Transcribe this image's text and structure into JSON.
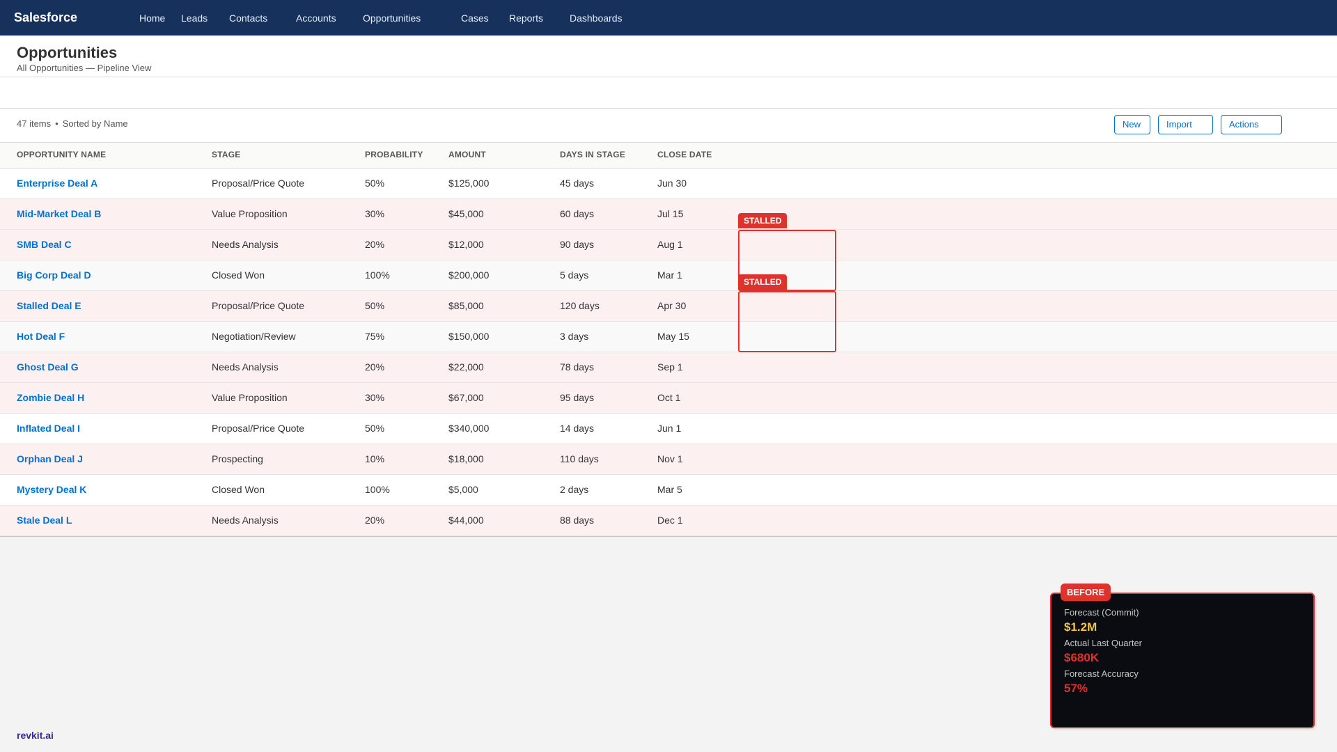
{
  "app": {
    "brand": "Salesforce"
  },
  "nav": {
    "items": [
      {
        "label": "Home"
      },
      {
        "label": "Leads"
      },
      {
        "label": "Contacts"
      },
      {
        "label": "Accounts"
      },
      {
        "label": "Opportunities"
      },
      {
        "label": "Cases"
      },
      {
        "label": "Reports"
      },
      {
        "label": "Dashboards"
      }
    ]
  },
  "header": {
    "title": "Opportunities",
    "subtitle": "All Opportunities — Pipeline View"
  },
  "listbar": {
    "count": "47 items",
    "separator": "•",
    "sort": "Sorted by Name",
    "buttons": {
      "new": "New",
      "import": "Import",
      "actions": "Actions"
    }
  },
  "table": {
    "columns": [
      "OPPORTUNITY NAME",
      "STAGE",
      "PROBABILITY",
      "AMOUNT",
      "DAYS IN STAGE",
      "CLOSE DATE"
    ],
    "rows": [
      {
        "name": "Enterprise Deal A",
        "stage": "Proposal/Price Quote",
        "probability": "50%",
        "amount": "$125,000",
        "days": "45 days",
        "close": "Jun 30"
      },
      {
        "name": "Mid-Market Deal B",
        "stage": "Value Proposition",
        "probability": "30%",
        "amount": "$45,000",
        "days": "60 days",
        "close": "Jul 15"
      },
      {
        "name": "SMB Deal C",
        "stage": "Needs Analysis",
        "probability": "20%",
        "amount": "$12,000",
        "days": "90 days",
        "close": "Aug 1"
      },
      {
        "name": "Big Corp Deal D",
        "stage": "Closed Won",
        "probability": "100%",
        "amount": "$200,000",
        "days": "5 days",
        "close": "Mar 1"
      },
      {
        "name": "Stalled Deal E",
        "stage": "Proposal/Price Quote",
        "probability": "50%",
        "amount": "$85,000",
        "days": "120 days",
        "close": "Apr 30"
      },
      {
        "name": "Hot Deal F",
        "stage": "Negotiation/Review",
        "probability": "75%",
        "amount": "$150,000",
        "days": "3 days",
        "close": "May 15"
      },
      {
        "name": "Ghost Deal G",
        "stage": "Needs Analysis",
        "probability": "20%",
        "amount": "$22,000",
        "days": "78 days",
        "close": "Sep 1"
      },
      {
        "name": "Zombie Deal H",
        "stage": "Value Proposition",
        "probability": "30%",
        "amount": "$67,000",
        "days": "95 days",
        "close": "Oct 1"
      },
      {
        "name": "Inflated Deal I",
        "stage": "Proposal/Price Quote",
        "probability": "50%",
        "amount": "$340,000",
        "days": "14 days",
        "close": "Jun 1"
      },
      {
        "name": "Orphan Deal J",
        "stage": "Prospecting",
        "probability": "10%",
        "amount": "$18,000",
        "days": "110 days",
        "close": "Nov 1"
      },
      {
        "name": "Mystery Deal K",
        "stage": "Closed Won",
        "probability": "100%",
        "amount": "$5,000",
        "days": "2 days",
        "close": "Mar 5"
      },
      {
        "name": "Stale Deal L",
        "stage": "Needs Analysis",
        "probability": "20%",
        "amount": "$44,000",
        "days": "88 days",
        "close": "Dec 1"
      }
    ]
  },
  "annotations": {
    "stalled_label": "STALLED"
  },
  "forecast": {
    "tag": "BEFORE",
    "commit_label": "Forecast (Commit)",
    "commit_value": "$1.2M",
    "actual_label": "Actual Last Quarter",
    "actual_value": "$680K",
    "accuracy_label": "Forecast Accuracy",
    "accuracy_value": "57%",
    "colors": {
      "commit": "#f5c542",
      "bad": "#e0322c"
    }
  },
  "footer": {
    "logo": "revkit.ai"
  }
}
